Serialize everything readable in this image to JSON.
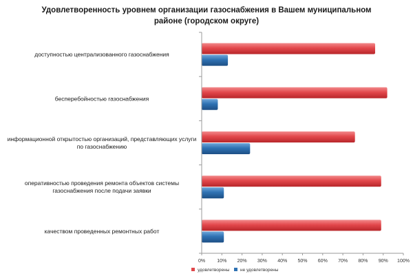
{
  "chart_data": {
    "type": "bar",
    "orientation": "horizontal",
    "title": "Удовлетворенность уровнем организации газоснабжения в Вашем муниципальном районе (городском округе)",
    "title_lines": [
      "Удовлетворенность уровнем организации газоснабжения в Вашем муниципальном",
      "районе (городском округе)"
    ],
    "categories": [
      "доступностью централизованного газоснабжения",
      "бесперебойностью газоснабжения",
      "информационной открытостью организаций, представляющих услуги по газоснабжению",
      "оперативностью проведения ремонта объектов системы газоснабжения после подачи заявки",
      "качеством проведенных ремонтных работ"
    ],
    "category_lines": [
      [
        "доступностью централизованного газоснабжения"
      ],
      [
        "бесперебойностью газоснабжения"
      ],
      [
        "информационной открытостью организаций, представляющих услуги",
        "по газоснабжению"
      ],
      [
        "оперативностью проведения ремонта объектов системы",
        "газоснабжения после подачи заявки"
      ],
      [
        "качеством проведенных ремонтных работ"
      ]
    ],
    "series": [
      {
        "name": "удовлетворены",
        "values": [
          86,
          92,
          76,
          89,
          89
        ],
        "color": "#e0474b"
      },
      {
        "name": "не удовлетворены",
        "values": [
          13,
          8,
          24,
          11,
          11
        ],
        "color": "#2f72b3"
      }
    ],
    "xlim": [
      0,
      100
    ],
    "x_ticks": [
      "0%",
      "10%",
      "20%",
      "30%",
      "40%",
      "50%",
      "60%",
      "70%",
      "80%",
      "90%",
      "100%"
    ],
    "grid": false,
    "legend_position": "bottom-center"
  }
}
